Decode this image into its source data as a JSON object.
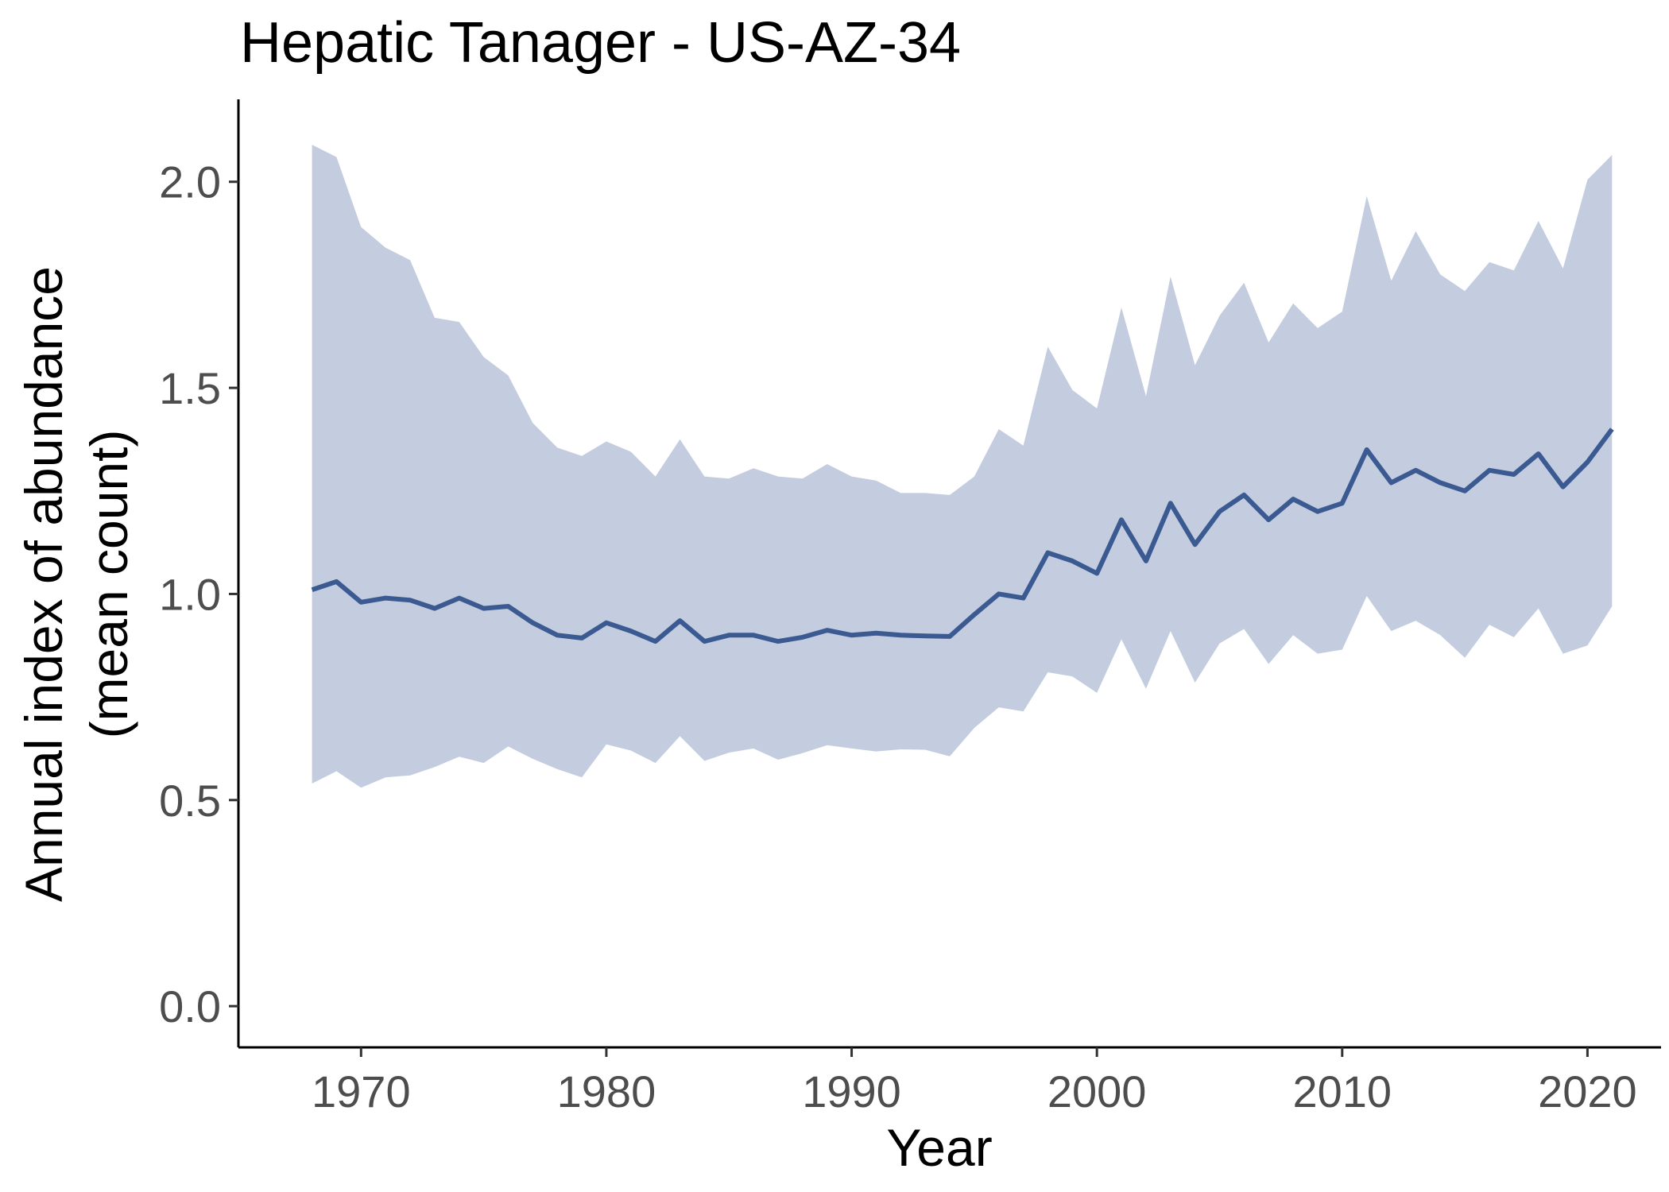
{
  "chart_data": {
    "type": "line",
    "title": "Hepatic Tanager - US-AZ-34",
    "xlabel": "Year",
    "ylabel_lines": [
      "Annual index of abundance",
      "(mean count)"
    ],
    "xlim": [
      1965,
      2023
    ],
    "ylim": [
      -0.1,
      2.2
    ],
    "xticks": [
      1970,
      1980,
      1990,
      2000,
      2010,
      2020
    ],
    "xtick_labels": [
      "1970",
      "1980",
      "1990",
      "2000",
      "2010",
      "2020"
    ],
    "yticks": [
      0.0,
      0.5,
      1.0,
      1.5,
      2.0
    ],
    "ytick_labels": [
      "0.0",
      "0.5",
      "1.0",
      "1.5",
      "2.0"
    ],
    "grid": false,
    "colors": {
      "line": "#3b5a91",
      "band": "#c4cddf"
    },
    "series": [
      {
        "x": [
          1968,
          1969,
          1970,
          1971,
          1972,
          1973,
          1974,
          1975,
          1976,
          1977,
          1978,
          1979,
          1980,
          1981,
          1982,
          1983,
          1984,
          1985,
          1986,
          1987,
          1988,
          1989,
          1990,
          1991,
          1992,
          1993,
          1994,
          1995,
          1996,
          1997,
          1998,
          1999,
          2000,
          2001,
          2002,
          2003,
          2004,
          2005,
          2006,
          2007,
          2008,
          2009,
          2010,
          2011,
          2012,
          2013,
          2014,
          2015,
          2016,
          2017,
          2018,
          2019,
          2020,
          2021
        ],
        "values": [
          1.01,
          1.03,
          0.98,
          0.99,
          0.985,
          0.965,
          0.99,
          0.965,
          0.97,
          0.93,
          0.9,
          0.893,
          0.93,
          0.91,
          0.885,
          0.935,
          0.885,
          0.9,
          0.9,
          0.885,
          0.895,
          0.912,
          0.9,
          0.905,
          0.9,
          0.898,
          0.897,
          0.95,
          1.0,
          0.99,
          1.1,
          1.08,
          1.05,
          1.18,
          1.08,
          1.22,
          1.12,
          1.2,
          1.24,
          1.18,
          1.23,
          1.2,
          1.22,
          1.35,
          1.27,
          1.3,
          1.27,
          1.25,
          1.3,
          1.29,
          1.34,
          1.26,
          1.32,
          1.4
        ],
        "lower": [
          0.54,
          0.57,
          0.53,
          0.555,
          0.56,
          0.58,
          0.605,
          0.59,
          0.63,
          0.6,
          0.575,
          0.555,
          0.635,
          0.62,
          0.59,
          0.655,
          0.595,
          0.615,
          0.625,
          0.598,
          0.614,
          0.633,
          0.625,
          0.618,
          0.623,
          0.622,
          0.606,
          0.675,
          0.725,
          0.715,
          0.81,
          0.8,
          0.76,
          0.89,
          0.77,
          0.91,
          0.785,
          0.88,
          0.915,
          0.83,
          0.9,
          0.855,
          0.865,
          0.995,
          0.91,
          0.935,
          0.9,
          0.845,
          0.925,
          0.895,
          0.965,
          0.855,
          0.875,
          0.97
        ],
        "upper": [
          2.09,
          2.06,
          1.89,
          1.84,
          1.81,
          1.67,
          1.66,
          1.575,
          1.53,
          1.415,
          1.355,
          1.335,
          1.37,
          1.345,
          1.285,
          1.375,
          1.285,
          1.28,
          1.305,
          1.285,
          1.28,
          1.315,
          1.285,
          1.275,
          1.245,
          1.245,
          1.24,
          1.285,
          1.4,
          1.36,
          1.6,
          1.495,
          1.45,
          1.695,
          1.48,
          1.77,
          1.555,
          1.675,
          1.755,
          1.61,
          1.705,
          1.645,
          1.685,
          1.965,
          1.76,
          1.88,
          1.775,
          1.735,
          1.805,
          1.785,
          1.905,
          1.79,
          2.005,
          2.065
        ]
      }
    ]
  }
}
